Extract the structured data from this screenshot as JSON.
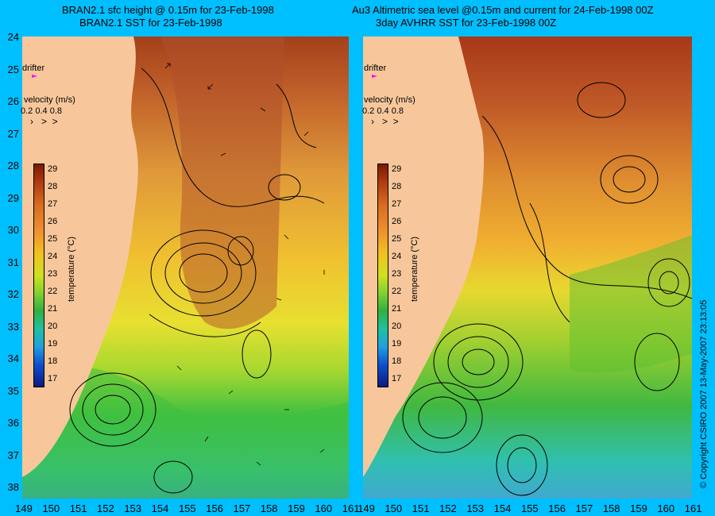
{
  "left_panel": {
    "title_line1": "BRAN2.1 sfc height @ 0.15m for 23-Feb-1998",
    "title_line2": "BRAN2.1 SST for 23-Feb-1998"
  },
  "right_panel": {
    "title_line1": "Au3 Altimetric sea level  @0.15m and current for 24-Feb-1998 00Z",
    "title_line2": "3day AVHRR SST for 23-Feb-1998 00Z"
  },
  "legend": {
    "drifter_label": "drifter",
    "velocity_label": "velocity (m/s)",
    "velocity_scale": "0.2 0.4 0.8",
    "colorbar_title": "temperature (°C)",
    "colorbar_ticks": [
      "29",
      "28",
      "27",
      "26",
      "25",
      "24",
      "23",
      "22",
      "21",
      "20",
      "19",
      "18",
      "17"
    ]
  },
  "axes": {
    "lat_labels": [
      "24",
      "25",
      "26",
      "27",
      "28",
      "29",
      "30",
      "31",
      "32",
      "33",
      "34",
      "35",
      "36",
      "37",
      "38"
    ],
    "lon_labels": [
      "149",
      "150",
      "151",
      "152",
      "153",
      "154",
      "155",
      "156",
      "157",
      "158",
      "159",
      "160",
      "161"
    ]
  },
  "copyright": "© Copyright CSIRO 2007   13-May-2007 23:13:05",
  "colors": {
    "background": "#00bfff",
    "land": "#f7c79b",
    "drifter": "#ff00ff"
  }
}
